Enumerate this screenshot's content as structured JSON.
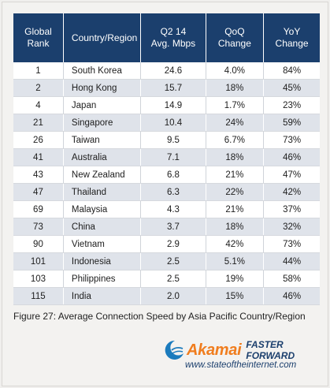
{
  "table": {
    "headers": {
      "rank": [
        "Global",
        "Rank"
      ],
      "country": [
        "Country/Region"
      ],
      "speed": [
        "Q2 14",
        "Avg. Mbps"
      ],
      "qoq": [
        "QoQ",
        "Change"
      ],
      "yoy": [
        "YoY",
        "Change"
      ]
    },
    "rows": [
      {
        "rank": "1",
        "country": "South Korea",
        "speed": "24.6",
        "qoq": "4.0%",
        "yoy": "84%"
      },
      {
        "rank": "2",
        "country": "Hong Kong",
        "speed": "15.7",
        "qoq": "18%",
        "yoy": "45%"
      },
      {
        "rank": "4",
        "country": "Japan",
        "speed": "14.9",
        "qoq": "1.7%",
        "yoy": "23%"
      },
      {
        "rank": "21",
        "country": "Singapore",
        "speed": "10.4",
        "qoq": "24%",
        "yoy": "59%"
      },
      {
        "rank": "26",
        "country": "Taiwan",
        "speed": "9.5",
        "qoq": "6.7%",
        "yoy": "73%"
      },
      {
        "rank": "41",
        "country": "Australia",
        "speed": "7.1",
        "qoq": "18%",
        "yoy": "46%"
      },
      {
        "rank": "43",
        "country": "New Zealand",
        "speed": "6.8",
        "qoq": "21%",
        "yoy": "47%"
      },
      {
        "rank": "47",
        "country": "Thailand",
        "speed": "6.3",
        "qoq": "22%",
        "yoy": "42%"
      },
      {
        "rank": "69",
        "country": "Malaysia",
        "speed": "4.3",
        "qoq": "21%",
        "yoy": "37%"
      },
      {
        "rank": "73",
        "country": "China",
        "speed": "3.7",
        "qoq": "18%",
        "yoy": "32%"
      },
      {
        "rank": "90",
        "country": "Vietnam",
        "speed": "2.9",
        "qoq": "42%",
        "yoy": "73%"
      },
      {
        "rank": "101",
        "country": "Indonesia",
        "speed": "2.5",
        "qoq": "5.1%",
        "yoy": "44%"
      },
      {
        "rank": "103",
        "country": "Philippines",
        "speed": "2.5",
        "qoq": "19%",
        "yoy": "58%"
      },
      {
        "rank": "115",
        "country": "India",
        "speed": "2.0",
        "qoq": "15%",
        "yoy": "46%"
      }
    ]
  },
  "caption": "Figure 27: Average Connection Speed by Asia Pacific Country/Region",
  "branding": {
    "logo_text": "Akamai",
    "tagline": "FASTER FORWARD",
    "url": "www.stateoftheinternet.com",
    "logo_icon": "akamai-wave-icon"
  },
  "colors": {
    "header_bg": "#1b3f6d",
    "row_alt": "#dfe3ea",
    "brand_orange": "#f07d1e",
    "brand_blue": "#1b3f6d"
  }
}
